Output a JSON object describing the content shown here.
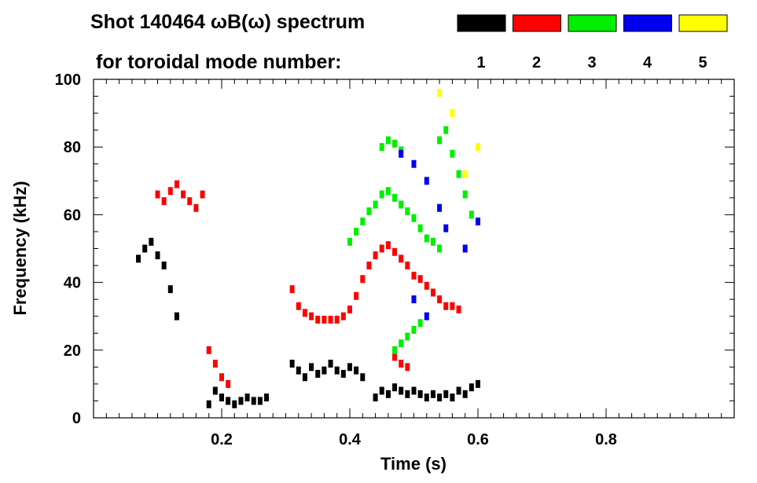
{
  "chart_data": {
    "type": "scatter",
    "title": "Shot 140464 ωB(ω) spectrum",
    "subtitle": "for toroidal mode number:",
    "xlabel": "Time (s)",
    "ylabel": "Frequency (kHz)",
    "xlim": [
      0.0,
      1.0
    ],
    "ylim": [
      0,
      100
    ],
    "x_ticks": [
      0.2,
      0.4,
      0.6,
      0.8
    ],
    "x_tick_labels": [
      "0.2",
      "0.4",
      "0.6",
      "0.8"
    ],
    "y_ticks": [
      0,
      20,
      40,
      60,
      80,
      100
    ],
    "y_tick_labels": [
      "0",
      "20",
      "40",
      "60",
      "80",
      "100"
    ],
    "legend": [
      {
        "label": "1",
        "color": "#000000"
      },
      {
        "label": "2",
        "color": "#ff0000"
      },
      {
        "label": "3",
        "color": "#00ee00"
      },
      {
        "label": "4",
        "color": "#0000ee"
      },
      {
        "label": "5",
        "color": "#ffff00"
      }
    ],
    "series": [
      {
        "name": "1",
        "color": "#000000",
        "points": [
          [
            0.07,
            47
          ],
          [
            0.08,
            50
          ],
          [
            0.09,
            52
          ],
          [
            0.1,
            48
          ],
          [
            0.11,
            45
          ],
          [
            0.12,
            38
          ],
          [
            0.13,
            30
          ],
          [
            0.18,
            4
          ],
          [
            0.19,
            8
          ],
          [
            0.2,
            6
          ],
          [
            0.21,
            5
          ],
          [
            0.22,
            4
          ],
          [
            0.23,
            5
          ],
          [
            0.24,
            6
          ],
          [
            0.25,
            5
          ],
          [
            0.26,
            5
          ],
          [
            0.27,
            6
          ],
          [
            0.31,
            16
          ],
          [
            0.32,
            14
          ],
          [
            0.33,
            12
          ],
          [
            0.34,
            15
          ],
          [
            0.35,
            13
          ],
          [
            0.36,
            14
          ],
          [
            0.37,
            16
          ],
          [
            0.38,
            14
          ],
          [
            0.39,
            13
          ],
          [
            0.4,
            15
          ],
          [
            0.41,
            14
          ],
          [
            0.42,
            12
          ],
          [
            0.44,
            6
          ],
          [
            0.45,
            8
          ],
          [
            0.46,
            7
          ],
          [
            0.47,
            9
          ],
          [
            0.48,
            8
          ],
          [
            0.49,
            7
          ],
          [
            0.5,
            8
          ],
          [
            0.51,
            7
          ],
          [
            0.52,
            6
          ],
          [
            0.53,
            7
          ],
          [
            0.54,
            6
          ],
          [
            0.55,
            7
          ],
          [
            0.56,
            6
          ],
          [
            0.57,
            8
          ],
          [
            0.58,
            7
          ],
          [
            0.59,
            9
          ],
          [
            0.6,
            10
          ]
        ]
      },
      {
        "name": "2",
        "color": "#ff0000",
        "points": [
          [
            0.1,
            66
          ],
          [
            0.11,
            64
          ],
          [
            0.12,
            67
          ],
          [
            0.13,
            69
          ],
          [
            0.14,
            66
          ],
          [
            0.15,
            64
          ],
          [
            0.16,
            62
          ],
          [
            0.17,
            66
          ],
          [
            0.18,
            20
          ],
          [
            0.19,
            16
          ],
          [
            0.2,
            12
          ],
          [
            0.21,
            10
          ],
          [
            0.31,
            38
          ],
          [
            0.32,
            33
          ],
          [
            0.33,
            31
          ],
          [
            0.34,
            30
          ],
          [
            0.35,
            29
          ],
          [
            0.36,
            29
          ],
          [
            0.37,
            29
          ],
          [
            0.38,
            29
          ],
          [
            0.39,
            30
          ],
          [
            0.4,
            32
          ],
          [
            0.41,
            36
          ],
          [
            0.42,
            41
          ],
          [
            0.43,
            45
          ],
          [
            0.44,
            48
          ],
          [
            0.45,
            50
          ],
          [
            0.46,
            51
          ],
          [
            0.47,
            49
          ],
          [
            0.48,
            47
          ],
          [
            0.49,
            45
          ],
          [
            0.5,
            42
          ],
          [
            0.51,
            41
          ],
          [
            0.52,
            39
          ],
          [
            0.53,
            37
          ],
          [
            0.54,
            35
          ],
          [
            0.55,
            33
          ],
          [
            0.56,
            33
          ],
          [
            0.57,
            32
          ],
          [
            0.47,
            18
          ],
          [
            0.48,
            16
          ],
          [
            0.49,
            15
          ]
        ]
      },
      {
        "name": "3",
        "color": "#00ee00",
        "points": [
          [
            0.4,
            52
          ],
          [
            0.41,
            55
          ],
          [
            0.42,
            58
          ],
          [
            0.43,
            61
          ],
          [
            0.44,
            63
          ],
          [
            0.45,
            66
          ],
          [
            0.46,
            67
          ],
          [
            0.47,
            65
          ],
          [
            0.48,
            63
          ],
          [
            0.49,
            61
          ],
          [
            0.5,
            59
          ],
          [
            0.51,
            56
          ],
          [
            0.52,
            53
          ],
          [
            0.53,
            52
          ],
          [
            0.54,
            50
          ],
          [
            0.45,
            80
          ],
          [
            0.46,
            82
          ],
          [
            0.47,
            81
          ],
          [
            0.48,
            79
          ],
          [
            0.54,
            82
          ],
          [
            0.55,
            85
          ],
          [
            0.56,
            78
          ],
          [
            0.57,
            72
          ],
          [
            0.58,
            66
          ],
          [
            0.59,
            60
          ],
          [
            0.47,
            20
          ],
          [
            0.48,
            22
          ],
          [
            0.49,
            24
          ],
          [
            0.5,
            26
          ],
          [
            0.51,
            28
          ]
        ]
      },
      {
        "name": "4",
        "color": "#0000ee",
        "points": [
          [
            0.48,
            78
          ],
          [
            0.5,
            75
          ],
          [
            0.52,
            70
          ],
          [
            0.54,
            62
          ],
          [
            0.55,
            56
          ],
          [
            0.58,
            50
          ],
          [
            0.5,
            35
          ],
          [
            0.52,
            30
          ],
          [
            0.6,
            58
          ]
        ]
      },
      {
        "name": "5",
        "color": "#ffff00",
        "points": [
          [
            0.54,
            96
          ],
          [
            0.56,
            90
          ],
          [
            0.58,
            72
          ],
          [
            0.6,
            80
          ]
        ]
      }
    ]
  }
}
